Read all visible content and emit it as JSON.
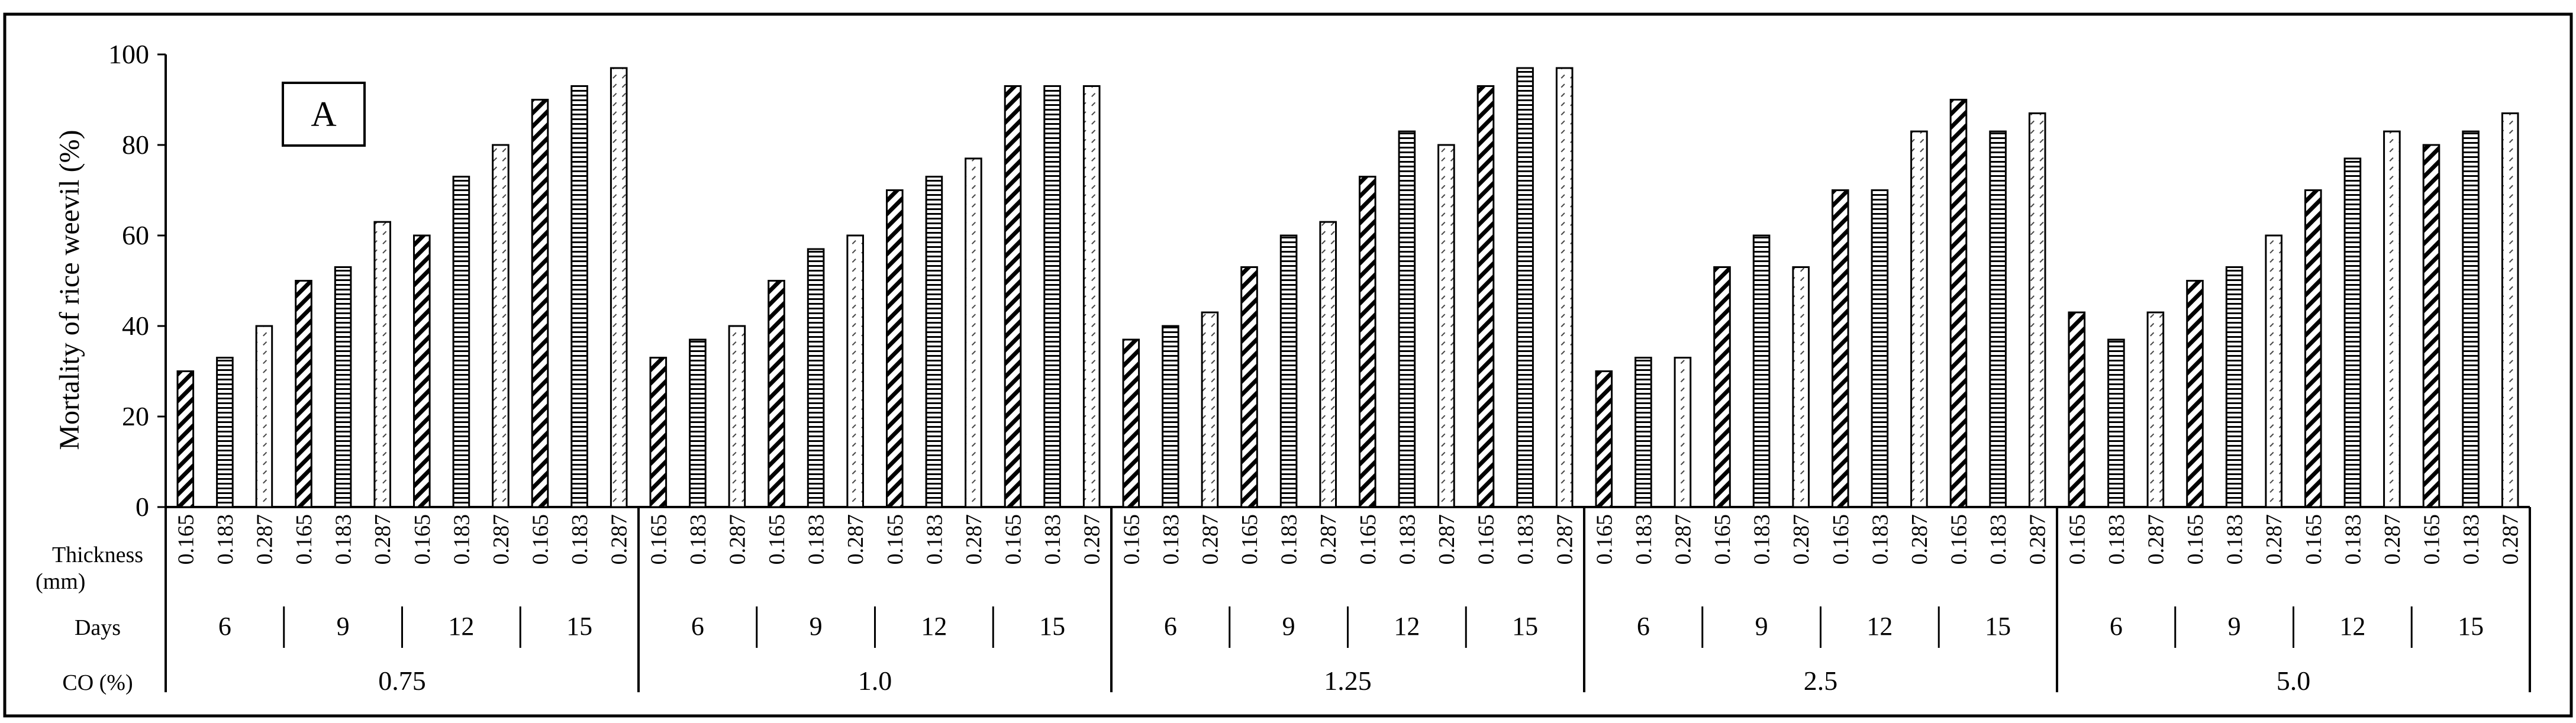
{
  "panel_label": "A",
  "chart_data": {
    "type": "bar",
    "ylabel": "Mortality of rice weevil (%)",
    "ylim": [
      0,
      100
    ],
    "yticks": [
      0,
      20,
      40,
      60,
      80,
      100
    ],
    "grid": false,
    "row_headers": {
      "thickness": "Thickness",
      "thickness_unit": "(mm)",
      "days": "Days",
      "co": "CO (%)"
    },
    "thickness_levels": [
      "0.165",
      "0.183",
      "0.287"
    ],
    "series_patterns": {
      "0.165": "diagonal",
      "0.183": "horizontal",
      "0.287": "dashed-diagonal"
    },
    "days_levels": [
      "6",
      "9",
      "12",
      "15"
    ],
    "co_levels": [
      "0.75",
      "1.0",
      "1.25",
      "2.5",
      "5.0"
    ],
    "values": [
      [
        [
          30,
          33,
          40
        ],
        [
          50,
          53,
          63
        ],
        [
          60,
          73,
          80
        ],
        [
          90,
          93,
          97
        ]
      ],
      [
        [
          33,
          37,
          40
        ],
        [
          50,
          57,
          60
        ],
        [
          70,
          73,
          77
        ],
        [
          93,
          93,
          93
        ]
      ],
      [
        [
          37,
          40,
          43
        ],
        [
          53,
          60,
          63
        ],
        [
          73,
          83,
          80
        ],
        [
          93,
          97,
          97
        ]
      ],
      [
        [
          30,
          33,
          33
        ],
        [
          53,
          60,
          53
        ],
        [
          70,
          70,
          83
        ],
        [
          90,
          83,
          87
        ]
      ],
      [
        [
          43,
          37,
          43
        ],
        [
          50,
          53,
          60
        ],
        [
          70,
          77,
          83
        ],
        [
          80,
          83,
          87
        ]
      ]
    ]
  }
}
